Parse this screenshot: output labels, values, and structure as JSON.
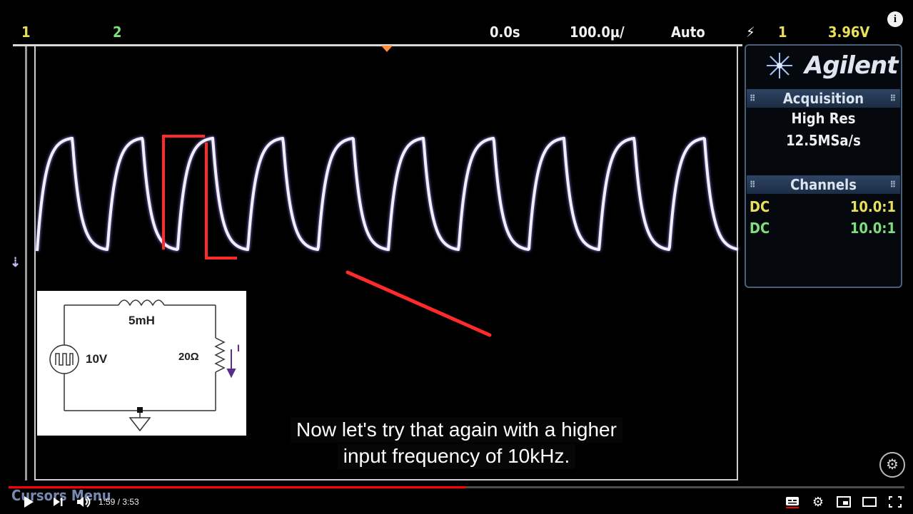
{
  "scope": {
    "status": {
      "ch1": "1",
      "ch2": "2",
      "delay": "0.0s",
      "timebase": "100.0µ/",
      "mode": "Auto",
      "trigger_channel": "1",
      "trigger_level": "3.96V"
    },
    "panel": {
      "brand": "Agilent",
      "acquisition_title": "Acquisition",
      "acquisition_mode": "High Res",
      "sample_rate": "12.5MSa/s",
      "channels_title": "Channels",
      "channels": [
        {
          "coupling": "DC",
          "probe": "10.0:1",
          "color": "#e8e05a"
        },
        {
          "coupling": "DC",
          "probe": "10.0:1",
          "color": "#7ee07a"
        }
      ]
    },
    "softkey_label": "Cursors Menu"
  },
  "circuit": {
    "inductor": "5mH",
    "source": "10V",
    "resistor": "20Ω",
    "current": "I"
  },
  "caption": {
    "line1": "Now let's try that again with a higher",
    "line2": "input frequency of 10kHz."
  },
  "player": {
    "time": "1:59 / 3:53",
    "progress_fraction": 0.511,
    "accent": "#ff0000",
    "icons": [
      "play-icon",
      "next-icon",
      "volume-icon",
      "subtitles-icon",
      "settings-icon",
      "miniplayer-icon",
      "theater-icon",
      "fullscreen-icon"
    ]
  },
  "colors": {
    "trace": "#f2eefc",
    "annotation": "#ff2a2a"
  }
}
